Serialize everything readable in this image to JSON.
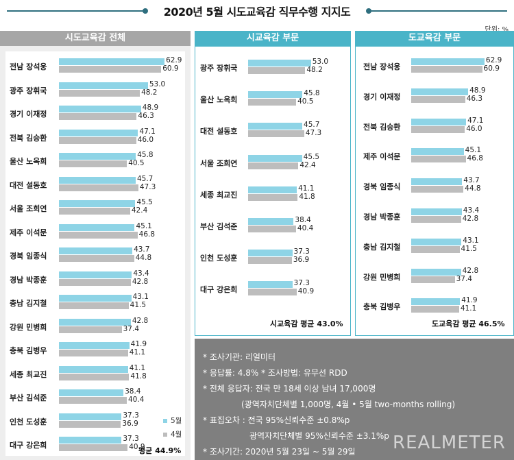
{
  "title": "2020년 5월 시도교육감 직무수행 지지도",
  "unit": "단위: %",
  "colors": {
    "may": "#8ed4e6",
    "april": "#bdbdbd",
    "header_grey": "#a6a6a6",
    "header_teal": "#4ab4c8",
    "notes_bg": "#7f7f7f"
  },
  "legend": {
    "may": "5월",
    "april": "4월"
  },
  "chart_data": [
    {
      "type": "bar",
      "title": "시도교육감 전체",
      "categories": [
        "전남 장석웅",
        "광주 장휘국",
        "경기 이재정",
        "전북 김승환",
        "울산 노옥희",
        "대전 설동호",
        "서울 조희연",
        "제주 이석문",
        "경북 임종식",
        "경남 박종훈",
        "충남 김지철",
        "강원 민병희",
        "충북 김병우",
        "세종 최교진",
        "부산 김석준",
        "인천 도성훈",
        "대구 강은희"
      ],
      "series": [
        {
          "name": "5월",
          "values": [
            62.9,
            53.0,
            48.9,
            47.1,
            45.8,
            45.7,
            45.5,
            45.1,
            43.7,
            43.4,
            43.1,
            42.8,
            41.9,
            41.1,
            38.4,
            37.3,
            37.3
          ]
        },
        {
          "name": "4월",
          "values": [
            60.9,
            48.2,
            46.3,
            46.0,
            40.5,
            47.3,
            42.4,
            46.8,
            44.8,
            42.8,
            41.5,
            37.4,
            41.1,
            41.8,
            40.4,
            36.9,
            40.9
          ]
        }
      ],
      "average": "평균 44.9%"
    },
    {
      "type": "bar",
      "title": "시교육감 부문",
      "categories": [
        "광주 장휘국",
        "울산 노옥희",
        "대전 설동호",
        "서울 조희연",
        "세종 최교진",
        "부산 김석준",
        "인천 도성훈",
        "대구 강은희"
      ],
      "series": [
        {
          "name": "5월",
          "values": [
            53.0,
            45.8,
            45.7,
            45.5,
            41.1,
            38.4,
            37.3,
            37.3
          ]
        },
        {
          "name": "4월",
          "values": [
            48.2,
            40.5,
            47.3,
            42.4,
            41.8,
            40.4,
            36.9,
            40.9
          ]
        }
      ],
      "average": "시교육감 평균 43.0%"
    },
    {
      "type": "bar",
      "title": "도교육감 부문",
      "categories": [
        "전남 장석웅",
        "경기 이재정",
        "전북 김승환",
        "제주 이석문",
        "경북 임종식",
        "경남 박종훈",
        "충남 김지철",
        "강원 민병희",
        "충북 김병우"
      ],
      "series": [
        {
          "name": "5월",
          "values": [
            62.9,
            48.9,
            47.1,
            45.1,
            43.7,
            43.4,
            43.1,
            42.8,
            41.9
          ]
        },
        {
          "name": "4월",
          "values": [
            60.9,
            46.3,
            46.0,
            46.8,
            44.8,
            42.8,
            41.5,
            37.4,
            41.1
          ]
        }
      ],
      "average": "도교육감 평균 46.5%"
    }
  ],
  "notes": [
    "* 조사기관: 리얼미터",
    "* 응답률: 4.8% * 조사방법: 유무선 RDD",
    "* 전체 응답자: 전국 만 18세 이상 남녀 17,000명",
    "(광역자치단체별 1,000명, 4월 • 5월 two-months rolling)",
    "* 표집오차 : 전국 95%신뢰수준 ±0.8%p",
    "광역자치단체별 95%신뢰수준 ±3.1%p",
    "* 조사기간: 2020년 5월 23일 ~ 5월 29일"
  ],
  "brand": "REALMETER"
}
